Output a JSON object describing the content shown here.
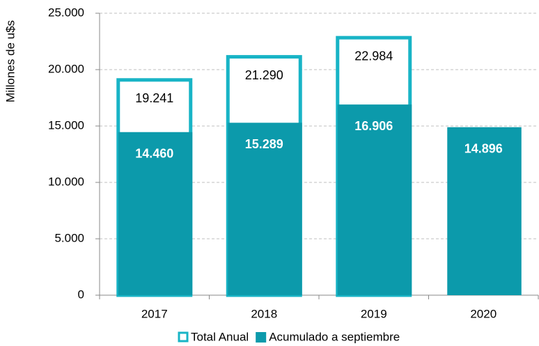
{
  "chart_data": {
    "type": "bar",
    "y_label": "Millones de u$s",
    "categories": [
      "2017",
      "2018",
      "2019",
      "2020"
    ],
    "series": [
      {
        "name": "Total Anual",
        "color": "#18b4c6",
        "fill": "#ffffff",
        "values": [
          19241,
          21290,
          22984,
          null
        ],
        "value_labels": [
          "19.241",
          "21.290",
          "22.984",
          null
        ]
      },
      {
        "name": "Acumulado a septiembre",
        "color": "#0c9aab",
        "values": [
          14460,
          15289,
          16906,
          14896
        ],
        "value_labels": [
          "14.460",
          "15.289",
          "16.906",
          "14.896"
        ]
      }
    ],
    "ylim": [
      0,
      25000
    ],
    "yticks": [
      0,
      {
        "value": 5000,
        "label": "5.000"
      },
      {
        "value": 10000,
        "label": "10.000"
      },
      {
        "value": 15000,
        "label": "15.000"
      },
      {
        "value": 20000,
        "label": "20.000"
      },
      {
        "value": 25000,
        "label": "25.000"
      }
    ],
    "grid": true,
    "legend": "bottom"
  }
}
